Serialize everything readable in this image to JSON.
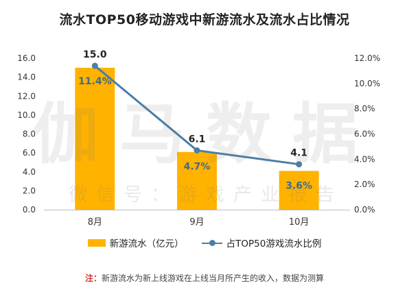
{
  "title": "流水TOP50移动游戏中新游流水及流水占比情况",
  "watermark": {
    "main": "伽马数据",
    "sub": "微信号：游戏产业报告"
  },
  "legend": {
    "bar_label": "新游流水（亿元）",
    "line_label": "占TOP50游戏流水比例"
  },
  "note": {
    "prefix": "注：",
    "text": "新游流水为新上线游戏在上线当月所产生的收入，数据为测算"
  },
  "colors": {
    "bar": "#FFB300",
    "line": "#4A7EA6",
    "pct_label": "#3D6B8F"
  },
  "chart_data": {
    "type": "bar",
    "categories": [
      "8月",
      "9月",
      "10月"
    ],
    "series": [
      {
        "name": "新游流水（亿元）",
        "type": "bar",
        "axis": "left",
        "values": [
          15.0,
          6.1,
          4.1
        ],
        "labels": [
          "15.0",
          "6.1",
          "4.1"
        ]
      },
      {
        "name": "占TOP50游戏流水比例",
        "type": "line",
        "axis": "right",
        "values": [
          11.4,
          4.7,
          3.6
        ],
        "labels": [
          "11.4%",
          "4.7%",
          "3.6%"
        ]
      }
    ],
    "y_left": {
      "ylim": [
        0,
        16
      ],
      "ticks": [
        "0.0",
        "2.0",
        "4.0",
        "6.0",
        "8.0",
        "10.0",
        "12.0",
        "14.0",
        "16.0"
      ]
    },
    "y_right": {
      "ylim": [
        0,
        12
      ],
      "ticks": [
        "0.0%",
        "2.0%",
        "4.0%",
        "6.0%",
        "8.0%",
        "10.0%",
        "12.0%"
      ]
    },
    "grid": false,
    "legend_position": "bottom"
  }
}
